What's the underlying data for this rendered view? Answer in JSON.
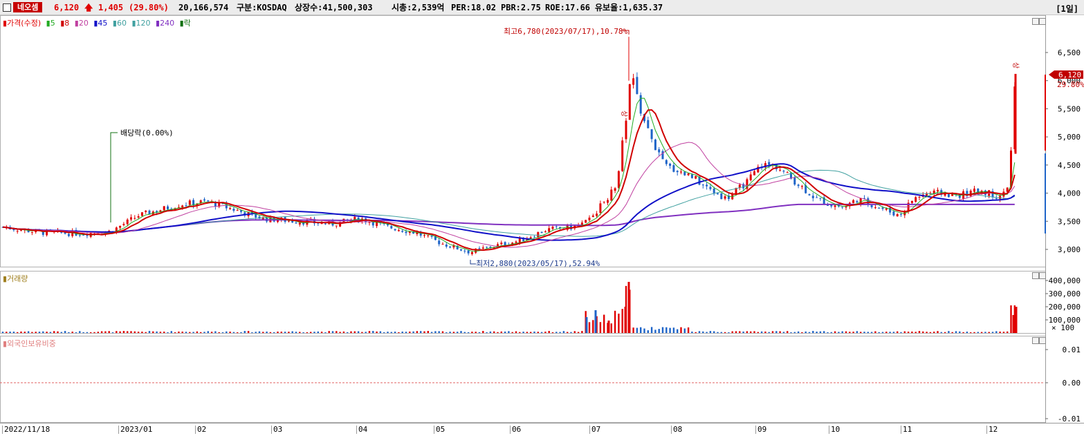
{
  "header": {
    "stock_name": "네오셈",
    "price": "6,120",
    "arrow": "🡅",
    "change": "1,405",
    "change_pct": "(29.80%)",
    "volume": "20,166,574",
    "market": "구분:KOSDAQ",
    "shares": "상장수:41,500,303",
    "mcap": "시총:2,539억",
    "per": "PER:18.02",
    "pbr": "PBR:2.75",
    "roe": "ROE:17.66",
    "float": "유보율:1,635.37",
    "period": "[1일]"
  },
  "price_panel": {
    "legend": {
      "price_label": "가격(수정)",
      "ma_labels": [
        "5",
        "8",
        "20",
        "45",
        "60",
        "120",
        "240"
      ],
      "ex_label": "락"
    },
    "y_ticks": [
      "6,500",
      "6,000",
      "5,500",
      "5,000",
      "4,500",
      "4,000",
      "3,500",
      "3,000"
    ],
    "annotations": {
      "high": "최고6,780(2023/07/17),10.78%",
      "low": "최저2,880(2023/05/17),52.94%",
      "dividend": "배당락(0.00%)",
      "limit_up_1": "상",
      "limit_up_2": "상"
    },
    "current_price_tag": "6,120",
    "current_pct_tag": "29.80%"
  },
  "volume_panel": {
    "legend": "거래량",
    "y_ticks": [
      "400,000",
      "300,000",
      "200,000",
      "100,000"
    ],
    "unit": "× 100"
  },
  "foreign_panel": {
    "legend": "외국인보유비중",
    "y_ticks": [
      "0.01",
      "0.00",
      "-0.01"
    ]
  },
  "x_axis": {
    "labels": [
      "2022/11/18",
      "2023/01",
      "02",
      "03",
      "04",
      "05",
      "06",
      "07",
      "08",
      "09",
      "10",
      "11",
      "12"
    ]
  },
  "colors": {
    "up": "#e00000",
    "down": "#1e64c8",
    "ma5": "#22aa22",
    "ma8": "#d00000",
    "ma20": "#c040a0",
    "ma45": "#1010c8",
    "ma60": "#40a0a0",
    "ma240": "#8030c0"
  }
}
